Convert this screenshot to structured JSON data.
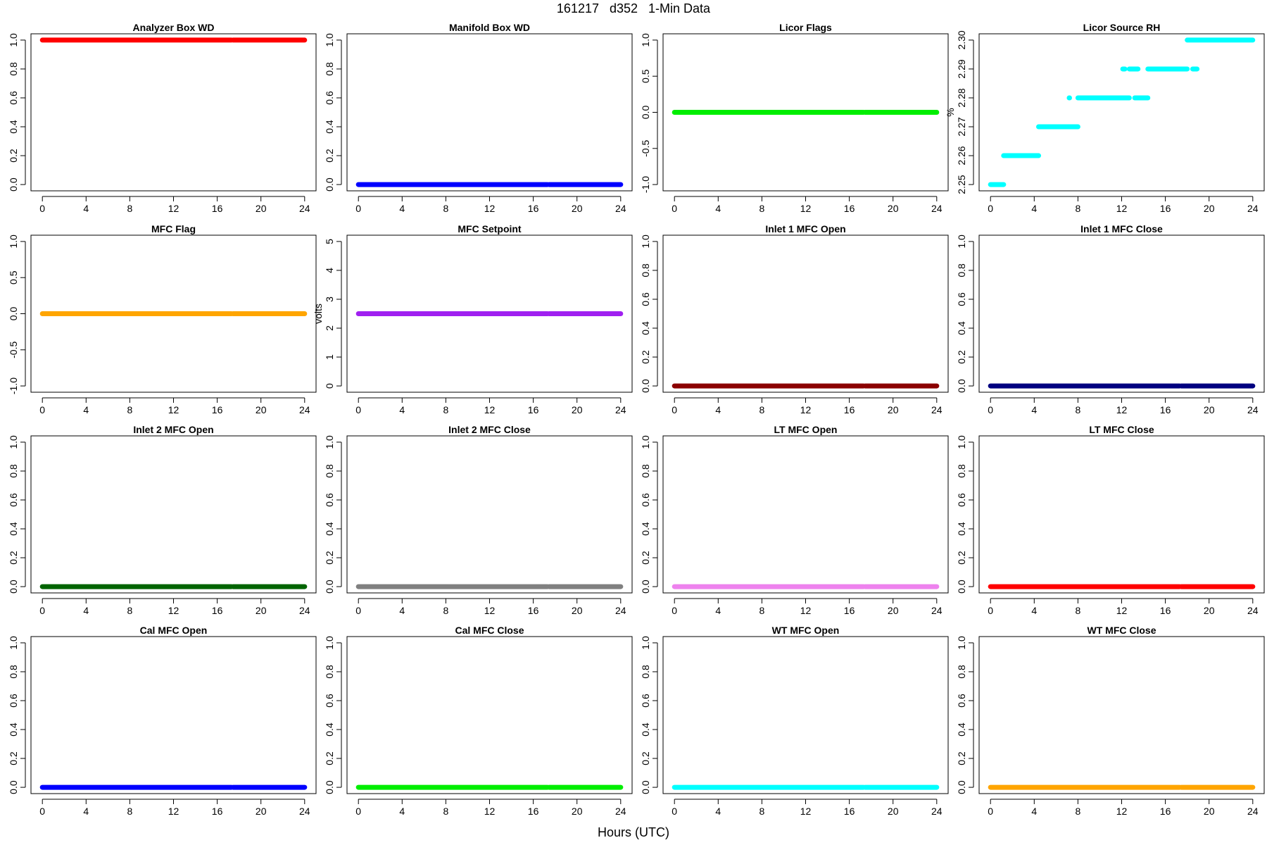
{
  "page": {
    "title": "161217   d352   1-Min Data",
    "xlabel": "Hours (UTC)"
  },
  "chart_data": [
    {
      "type": "scatter",
      "title": "Analyzer Box WD",
      "ylabel": "",
      "color": "#ff0000",
      "xlim": [
        0,
        24
      ],
      "xticks": [
        0,
        4,
        8,
        12,
        16,
        20,
        24
      ],
      "ylim": [
        0,
        1
      ],
      "yticks": [
        0,
        0.2,
        0.4,
        0.6,
        0.8,
        1
      ],
      "ytick_labels": [
        "0.0",
        "0.2",
        "0.4",
        "0.6",
        "0.8",
        "1.0"
      ],
      "segments": [
        {
          "x": [
            0,
            17.3
          ],
          "y": 1
        },
        {
          "x": [
            17.45,
            24
          ],
          "y": 1
        }
      ]
    },
    {
      "type": "scatter",
      "title": "Manifold Box WD",
      "ylabel": "",
      "color": "#0000ff",
      "xlim": [
        0,
        24
      ],
      "xticks": [
        0,
        4,
        8,
        12,
        16,
        20,
        24
      ],
      "ylim": [
        0,
        1
      ],
      "yticks": [
        0,
        0.2,
        0.4,
        0.6,
        0.8,
        1
      ],
      "ytick_labels": [
        "0.0",
        "0.2",
        "0.4",
        "0.6",
        "0.8",
        "1.0"
      ],
      "segments": [
        {
          "x": [
            0,
            17.3
          ],
          "y": 0
        },
        {
          "x": [
            17.45,
            24
          ],
          "y": 0
        }
      ]
    },
    {
      "type": "scatter",
      "title": "Licor Flags",
      "ylabel": "",
      "color": "#00ee00",
      "xlim": [
        0,
        24
      ],
      "xticks": [
        0,
        4,
        8,
        12,
        16,
        20,
        24
      ],
      "ylim": [
        -1,
        1
      ],
      "yticks": [
        -1,
        -0.5,
        0,
        0.5,
        1
      ],
      "ytick_labels": [
        "-1.0",
        "-0.5",
        "0.0",
        "0.5",
        "1.0"
      ],
      "segments": [
        {
          "x": [
            0,
            17.3
          ],
          "y": 0
        },
        {
          "x": [
            17.45,
            24
          ],
          "y": 0
        }
      ]
    },
    {
      "type": "scatter",
      "title": "Licor Source RH",
      "ylabel": "%",
      "color": "#00ffff",
      "xlim": [
        0,
        24
      ],
      "xticks": [
        0,
        4,
        8,
        12,
        16,
        20,
        24
      ],
      "ylim": [
        2.25,
        2.3
      ],
      "yticks": [
        2.25,
        2.26,
        2.27,
        2.28,
        2.29,
        2.3
      ],
      "ytick_labels": [
        "2.25",
        "2.26",
        "2.27",
        "2.28",
        "2.29",
        "2.30"
      ],
      "segments": [
        {
          "x": [
            0,
            1.2
          ],
          "y": 2.25
        },
        {
          "x": [
            1.2,
            4.4
          ],
          "y": 2.26
        },
        {
          "x": [
            4.4,
            8.0
          ],
          "y": 2.27
        },
        {
          "x": [
            7.2,
            7.2
          ],
          "y": 2.28
        },
        {
          "x": [
            8.0,
            12.7
          ],
          "y": 2.28
        },
        {
          "x": [
            12.1,
            12.3
          ],
          "y": 2.29
        },
        {
          "x": [
            12.7,
            13.5
          ],
          "y": 2.29
        },
        {
          "x": [
            13.2,
            14.4
          ],
          "y": 2.28
        },
        {
          "x": [
            14.4,
            18.0
          ],
          "y": 2.29
        },
        {
          "x": [
            18.5,
            18.9
          ],
          "y": 2.29
        },
        {
          "x": [
            18.0,
            24
          ],
          "y": 2.3
        }
      ]
    },
    {
      "type": "scatter",
      "title": "MFC Flag",
      "ylabel": "",
      "color": "#ffa500",
      "xlim": [
        0,
        24
      ],
      "xticks": [
        0,
        4,
        8,
        12,
        16,
        20,
        24
      ],
      "ylim": [
        -1,
        1
      ],
      "yticks": [
        -1,
        -0.5,
        0,
        0.5,
        1
      ],
      "ytick_labels": [
        "-1.0",
        "-0.5",
        "0.0",
        "0.5",
        "1.0"
      ],
      "segments": [
        {
          "x": [
            0,
            17.3
          ],
          "y": 0
        },
        {
          "x": [
            17.45,
            24
          ],
          "y": 0
        }
      ]
    },
    {
      "type": "scatter",
      "title": "MFC Setpoint",
      "ylabel": "volts",
      "color": "#a020f0",
      "xlim": [
        0,
        24
      ],
      "xticks": [
        0,
        4,
        8,
        12,
        16,
        20,
        24
      ],
      "ylim": [
        0,
        5
      ],
      "yticks": [
        0,
        1,
        2,
        3,
        4,
        5
      ],
      "ytick_labels": [
        "0",
        "1",
        "2",
        "3",
        "4",
        "5"
      ],
      "segments": [
        {
          "x": [
            0,
            17.3
          ],
          "y": 2.5
        },
        {
          "x": [
            17.45,
            24
          ],
          "y": 2.5
        }
      ]
    },
    {
      "type": "scatter",
      "title": "Inlet 1 MFC Open",
      "ylabel": "",
      "color": "#8b0000",
      "xlim": [
        0,
        24
      ],
      "xticks": [
        0,
        4,
        8,
        12,
        16,
        20,
        24
      ],
      "ylim": [
        0,
        1
      ],
      "yticks": [
        0,
        0.2,
        0.4,
        0.6,
        0.8,
        1
      ],
      "ytick_labels": [
        "0.0",
        "0.2",
        "0.4",
        "0.6",
        "0.8",
        "1.0"
      ],
      "segments": [
        {
          "x": [
            0,
            17.3
          ],
          "y": 0
        },
        {
          "x": [
            17.45,
            24
          ],
          "y": 0
        }
      ]
    },
    {
      "type": "scatter",
      "title": "Inlet 1 MFC Close",
      "ylabel": "",
      "color": "#000080",
      "xlim": [
        0,
        24
      ],
      "xticks": [
        0,
        4,
        8,
        12,
        16,
        20,
        24
      ],
      "ylim": [
        0,
        1
      ],
      "yticks": [
        0,
        0.2,
        0.4,
        0.6,
        0.8,
        1
      ],
      "ytick_labels": [
        "0.0",
        "0.2",
        "0.4",
        "0.6",
        "0.8",
        "1.0"
      ],
      "segments": [
        {
          "x": [
            0,
            17.3
          ],
          "y": 0
        },
        {
          "x": [
            17.45,
            24
          ],
          "y": 0
        }
      ]
    },
    {
      "type": "scatter",
      "title": "Inlet 2 MFC Open",
      "ylabel": "",
      "color": "#006400",
      "xlim": [
        0,
        24
      ],
      "xticks": [
        0,
        4,
        8,
        12,
        16,
        20,
        24
      ],
      "ylim": [
        0,
        1
      ],
      "yticks": [
        0,
        0.2,
        0.4,
        0.6,
        0.8,
        1
      ],
      "ytick_labels": [
        "0.0",
        "0.2",
        "0.4",
        "0.6",
        "0.8",
        "1.0"
      ],
      "segments": [
        {
          "x": [
            0,
            17.3
          ],
          "y": 0
        },
        {
          "x": [
            17.45,
            24
          ],
          "y": 0
        }
      ]
    },
    {
      "type": "scatter",
      "title": "Inlet 2 MFC Close",
      "ylabel": "",
      "color": "#808080",
      "xlim": [
        0,
        24
      ],
      "xticks": [
        0,
        4,
        8,
        12,
        16,
        20,
        24
      ],
      "ylim": [
        0,
        1
      ],
      "yticks": [
        0,
        0.2,
        0.4,
        0.6,
        0.8,
        1
      ],
      "ytick_labels": [
        "0.0",
        "0.2",
        "0.4",
        "0.6",
        "0.8",
        "1.0"
      ],
      "segments": [
        {
          "x": [
            0,
            17.3
          ],
          "y": 0
        },
        {
          "x": [
            17.45,
            24
          ],
          "y": 0
        }
      ]
    },
    {
      "type": "scatter",
      "title": "LT MFC Open",
      "ylabel": "",
      "color": "#ee82ee",
      "xlim": [
        0,
        24
      ],
      "xticks": [
        0,
        4,
        8,
        12,
        16,
        20,
        24
      ],
      "ylim": [
        0,
        1
      ],
      "yticks": [
        0,
        0.2,
        0.4,
        0.6,
        0.8,
        1
      ],
      "ytick_labels": [
        "0.0",
        "0.2",
        "0.4",
        "0.6",
        "0.8",
        "1.0"
      ],
      "segments": [
        {
          "x": [
            0,
            17.3
          ],
          "y": 0
        },
        {
          "x": [
            17.45,
            24
          ],
          "y": 0
        }
      ]
    },
    {
      "type": "scatter",
      "title": "LT MFC Close",
      "ylabel": "",
      "color": "#ff0000",
      "xlim": [
        0,
        24
      ],
      "xticks": [
        0,
        4,
        8,
        12,
        16,
        20,
        24
      ],
      "ylim": [
        0,
        1
      ],
      "yticks": [
        0,
        0.2,
        0.4,
        0.6,
        0.8,
        1
      ],
      "ytick_labels": [
        "0.0",
        "0.2",
        "0.4",
        "0.6",
        "0.8",
        "1.0"
      ],
      "segments": [
        {
          "x": [
            0,
            17.3
          ],
          "y": 0
        },
        {
          "x": [
            17.45,
            24
          ],
          "y": 0
        }
      ]
    },
    {
      "type": "scatter",
      "title": "Cal MFC Open",
      "ylabel": "",
      "color": "#0000ff",
      "xlim": [
        0,
        24
      ],
      "xticks": [
        0,
        4,
        8,
        12,
        16,
        20,
        24
      ],
      "ylim": [
        0,
        1
      ],
      "yticks": [
        0,
        0.2,
        0.4,
        0.6,
        0.8,
        1
      ],
      "ytick_labels": [
        "0.0",
        "0.2",
        "0.4",
        "0.6",
        "0.8",
        "1.0"
      ],
      "segments": [
        {
          "x": [
            0,
            17.3
          ],
          "y": 0
        },
        {
          "x": [
            17.45,
            24
          ],
          "y": 0
        }
      ]
    },
    {
      "type": "scatter",
      "title": "Cal MFC Close",
      "ylabel": "",
      "color": "#00ee00",
      "xlim": [
        0,
        24
      ],
      "xticks": [
        0,
        4,
        8,
        12,
        16,
        20,
        24
      ],
      "ylim": [
        0,
        1
      ],
      "yticks": [
        0,
        0.2,
        0.4,
        0.6,
        0.8,
        1
      ],
      "ytick_labels": [
        "0.0",
        "0.2",
        "0.4",
        "0.6",
        "0.8",
        "1.0"
      ],
      "segments": [
        {
          "x": [
            0,
            17.3
          ],
          "y": 0
        },
        {
          "x": [
            17.45,
            24
          ],
          "y": 0
        }
      ]
    },
    {
      "type": "scatter",
      "title": "WT MFC Open",
      "ylabel": "",
      "color": "#00ffff",
      "xlim": [
        0,
        24
      ],
      "xticks": [
        0,
        4,
        8,
        12,
        16,
        20,
        24
      ],
      "ylim": [
        0,
        1
      ],
      "yticks": [
        0,
        0.2,
        0.4,
        0.6,
        0.8,
        1
      ],
      "ytick_labels": [
        "0.0",
        "0.2",
        "0.4",
        "0.6",
        "0.8",
        "1.0"
      ],
      "segments": [
        {
          "x": [
            0,
            17.3
          ],
          "y": 0
        },
        {
          "x": [
            17.45,
            24
          ],
          "y": 0
        }
      ]
    },
    {
      "type": "scatter",
      "title": "WT MFC Close",
      "ylabel": "",
      "color": "#ffa500",
      "xlim": [
        0,
        24
      ],
      "xticks": [
        0,
        4,
        8,
        12,
        16,
        20,
        24
      ],
      "ylim": [
        0,
        1
      ],
      "yticks": [
        0,
        0.2,
        0.4,
        0.6,
        0.8,
        1
      ],
      "ytick_labels": [
        "0.0",
        "0.2",
        "0.4",
        "0.6",
        "0.8",
        "1.0"
      ],
      "segments": [
        {
          "x": [
            0,
            17.3
          ],
          "y": 0
        },
        {
          "x": [
            17.45,
            24
          ],
          "y": 0
        }
      ]
    }
  ]
}
